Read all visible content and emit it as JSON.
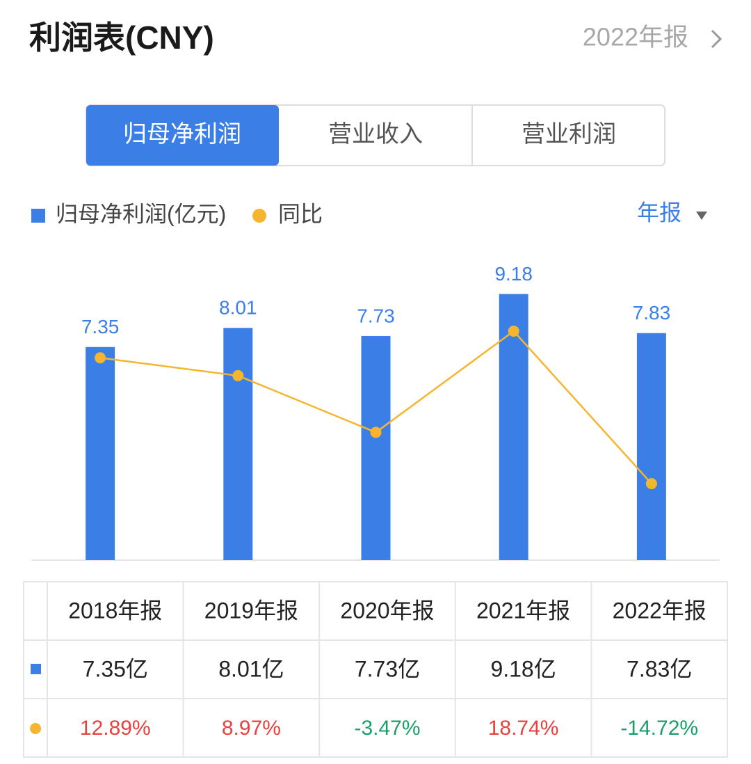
{
  "header": {
    "title": "利润表(CNY)",
    "period": "2022年报"
  },
  "tabs": [
    "归母净利润",
    "营业收入",
    "营业利润"
  ],
  "period_selector": "年报",
  "chart_data": {
    "type": "bar-line",
    "categories": [
      "2018年报",
      "2019年报",
      "2020年报",
      "2021年报",
      "2022年报"
    ],
    "series": [
      {
        "name": "归母净利润(亿元)",
        "color": "#3b7fe6",
        "values": [
          7.35,
          8.01,
          7.73,
          9.18,
          7.83
        ],
        "value_labels": [
          "7.35亿",
          "8.01亿",
          "7.73亿",
          "9.18亿",
          "7.83亿"
        ]
      },
      {
        "name": "同比",
        "color": "#f5b52e",
        "axis": "y2",
        "values": [
          12.89,
          8.97,
          -3.47,
          18.74,
          -14.72
        ],
        "value_labels": [
          "12.89%",
          "8.97%",
          "-3.47%",
          "18.74%",
          "-14.72%"
        ]
      }
    ],
    "ylim": [
      0,
      10.8
    ],
    "y2lim": [
      -31.5,
      37.2
    ]
  }
}
